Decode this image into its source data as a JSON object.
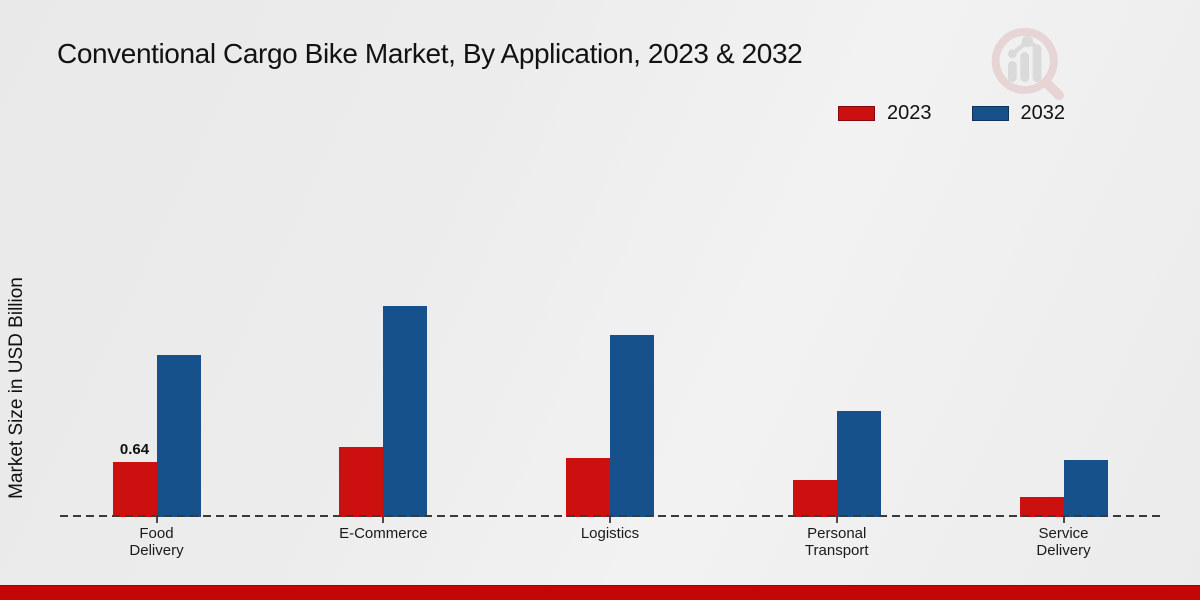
{
  "title": "Conventional Cargo Bike Market, By Application, 2023 & 2032",
  "ylabel": "Market Size in USD Billion",
  "legend": {
    "position": "top-right",
    "items": [
      {
        "label": "2023",
        "color": "#cc0f0f"
      },
      {
        "label": "2032",
        "color": "#17518c"
      }
    ]
  },
  "watermark_icon": "magnifier-bar-chart-logo",
  "footer": {
    "bar_color": "#c40606"
  },
  "chart_data": {
    "type": "bar",
    "grouped": true,
    "title": "Conventional Cargo Bike Market, By Application, 2023 & 2032",
    "xlabel": "",
    "ylabel": "Market Size in USD Billion",
    "unit": "USD Billion",
    "categories": [
      "Food Delivery",
      "E-Commerce",
      "Logistics",
      "Personal Transport",
      "Service Delivery"
    ],
    "category_label_lines": [
      [
        "Food",
        "Delivery"
      ],
      [
        "E-Commerce"
      ],
      [
        "Logistics"
      ],
      [
        "Personal",
        "Transport"
      ],
      [
        "Service",
        "Delivery"
      ]
    ],
    "series": [
      {
        "name": "2023",
        "color": "#cc0f0f",
        "values": [
          0.64,
          0.82,
          0.68,
          0.42,
          0.21
        ]
      },
      {
        "name": "2032",
        "color": "#17518c",
        "values": [
          1.92,
          2.5,
          2.16,
          1.25,
          0.66
        ]
      }
    ],
    "data_labels": [
      {
        "series": "2023",
        "category": "Food Delivery",
        "text": "0.64"
      }
    ],
    "ylim": [
      0,
      2.8
    ],
    "grid": false,
    "baseline_style": "dashed",
    "legend_position": "top-right"
  }
}
